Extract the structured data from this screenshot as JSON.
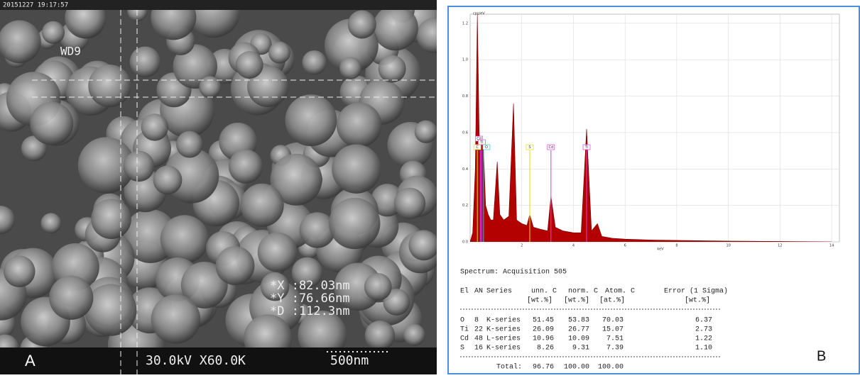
{
  "sem_panel": {
    "timestamp": "20151227 19:17:57",
    "wd": "WD9",
    "measurements": [
      "*X :82.03nm",
      "*Y :76.66nm",
      "*D :112.3nm"
    ],
    "footer": "30.0kV X60.0K",
    "scale_bar": "500nm",
    "panel_label": "A"
  },
  "spectrum": {
    "type": "area",
    "y_label": "cps/eV",
    "x_label": "keV",
    "color": "#b30000",
    "xlim": [
      0,
      14.3
    ],
    "ylim": [
      0,
      1.25
    ],
    "xticks": [
      2,
      4,
      6,
      8,
      10,
      12,
      14
    ],
    "yticks": [
      {
        "value": 0,
        "label": "0.0"
      },
      {
        "value": 0.2,
        "label": "0.2"
      },
      {
        "value": 0.4,
        "label": "0.4"
      },
      {
        "value": 0.6,
        "label": "0.6"
      },
      {
        "value": 0.8,
        "label": "0.8"
      },
      {
        "value": 1,
        "label": "1.0"
      },
      {
        "value": 1.2,
        "label": "1.2"
      }
    ],
    "grid": true,
    "x": [
      0,
      0.1,
      0.2,
      0.28,
      0.35,
      0.4,
      0.45,
      0.52,
      0.6,
      0.7,
      0.8,
      0.9,
      1.05,
      1.15,
      1.3,
      1.5,
      1.68,
      1.8,
      2.0,
      2.2,
      2.31,
      2.45,
      2.7,
      3.0,
      3.13,
      3.3,
      3.6,
      4.0,
      4.3,
      4.51,
      4.7,
      4.93,
      5.1,
      5.5,
      6,
      7,
      8,
      9,
      10,
      12,
      14
    ],
    "values": [
      0,
      0.05,
      0.4,
      1.25,
      0.6,
      0.5,
      0.55,
      0.5,
      0.2,
      0.15,
      0.12,
      0.12,
      0.44,
      0.15,
      0.12,
      0.14,
      0.76,
      0.12,
      0.1,
      0.09,
      0.15,
      0.08,
      0.07,
      0.06,
      0.25,
      0.08,
      0.06,
      0.05,
      0.05,
      0.62,
      0.06,
      0.1,
      0.03,
      0.02,
      0.015,
      0.01,
      0.008,
      0.006,
      0.004,
      0.002,
      0
    ],
    "markers": [
      {
        "label": "C",
        "x": 0.28,
        "color": "#e0e000"
      },
      {
        "label": "Cd",
        "x": 0.4,
        "color": "#e040e0"
      },
      {
        "label": "Ti",
        "x": 0.45,
        "color": "#e040e0"
      },
      {
        "label": "O",
        "x": 0.52,
        "color": "#30c0c0"
      },
      {
        "label": "S",
        "x": 2.31,
        "color": "#e0e000"
      },
      {
        "label": "Cd",
        "x": 3.13,
        "color": "#e040e0"
      },
      {
        "label": "Ti",
        "x": 4.51,
        "color": "#e040e0"
      }
    ]
  },
  "table": {
    "title": "Spectrum: Acquisition 505",
    "header": [
      "El",
      "AN",
      "Series",
      "unn. C",
      "norm. C",
      "Atom. C",
      "Error (1 Sigma)"
    ],
    "units": [
      "[wt.%]",
      "[wt.%]",
      "[at.%]",
      "[wt.%]"
    ],
    "rows": [
      [
        "O",
        "8",
        "K-series",
        "51.45",
        "53.83",
        "70.03",
        "6.37"
      ],
      [
        "Ti",
        "22",
        "K-series",
        "26.09",
        "26.77",
        "15.07",
        "2.73"
      ],
      [
        "Cd",
        "48",
        "L-series",
        "10.96",
        "10.09",
        "7.51",
        "1.22"
      ],
      [
        "S",
        "16",
        "K-series",
        "8.26",
        "9.31",
        "7.39",
        "1.10"
      ]
    ],
    "total": [
      "Total:",
      "96.76",
      "100.00",
      "100.00"
    ]
  },
  "panel_label": "B"
}
